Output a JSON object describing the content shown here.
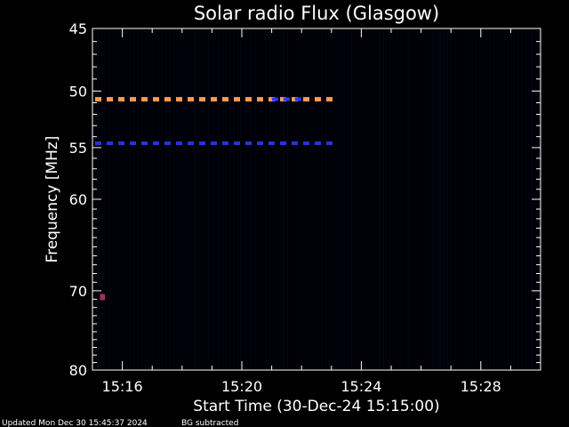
{
  "chart_data": {
    "type": "heatmap",
    "title": "Solar radio Flux (Glasgow)",
    "xlabel": "Start Time (30-Dec-24 15:15:00)",
    "ylabel": "Frequency [MHz]",
    "x_unit": "minutes",
    "x_start": "15:15:00",
    "xlim": [
      "15:15:00",
      "15:30:00"
    ],
    "ylim": [
      45,
      80
    ],
    "y_scale": "log",
    "y_inverted": true,
    "x_tick_labels": [
      "15:16",
      "15:20",
      "15:24",
      "15:28"
    ],
    "x_ticks": [
      "15:16:00",
      "15:20:00",
      "15:24:00",
      "15:28:00"
    ],
    "y_tick_labels": [
      "45",
      "50",
      "55",
      "60",
      "70",
      "80"
    ],
    "y_ticks": [
      45,
      50,
      55,
      60,
      70,
      80
    ],
    "grid": false,
    "background_color": "#000005",
    "series": [
      {
        "frequency": 50.7,
        "t_start": "15:15:00",
        "t_end": "15:23:05",
        "color": "#ff9a55",
        "intensity": "high"
      },
      {
        "frequency": 50.7,
        "t_start": "15:20:55",
        "t_end": "15:22:05",
        "color": "#2a3cff",
        "intensity": "medium"
      },
      {
        "frequency": 54.6,
        "t_start": "15:15:00",
        "t_end": "15:23:05",
        "color": "#2436d8",
        "intensity": "medium"
      },
      {
        "frequency": 70.8,
        "t_start": "15:15:15",
        "t_end": "15:15:25",
        "color": "#a03060",
        "intensity": "low"
      }
    ]
  },
  "footer": {
    "updated": "Updated Mon Dec 30 15:45:37 2024",
    "note": "BG subtracted"
  },
  "colors": {
    "background": "#000000",
    "plot_background": "#000005",
    "axis": "#ffffff"
  }
}
